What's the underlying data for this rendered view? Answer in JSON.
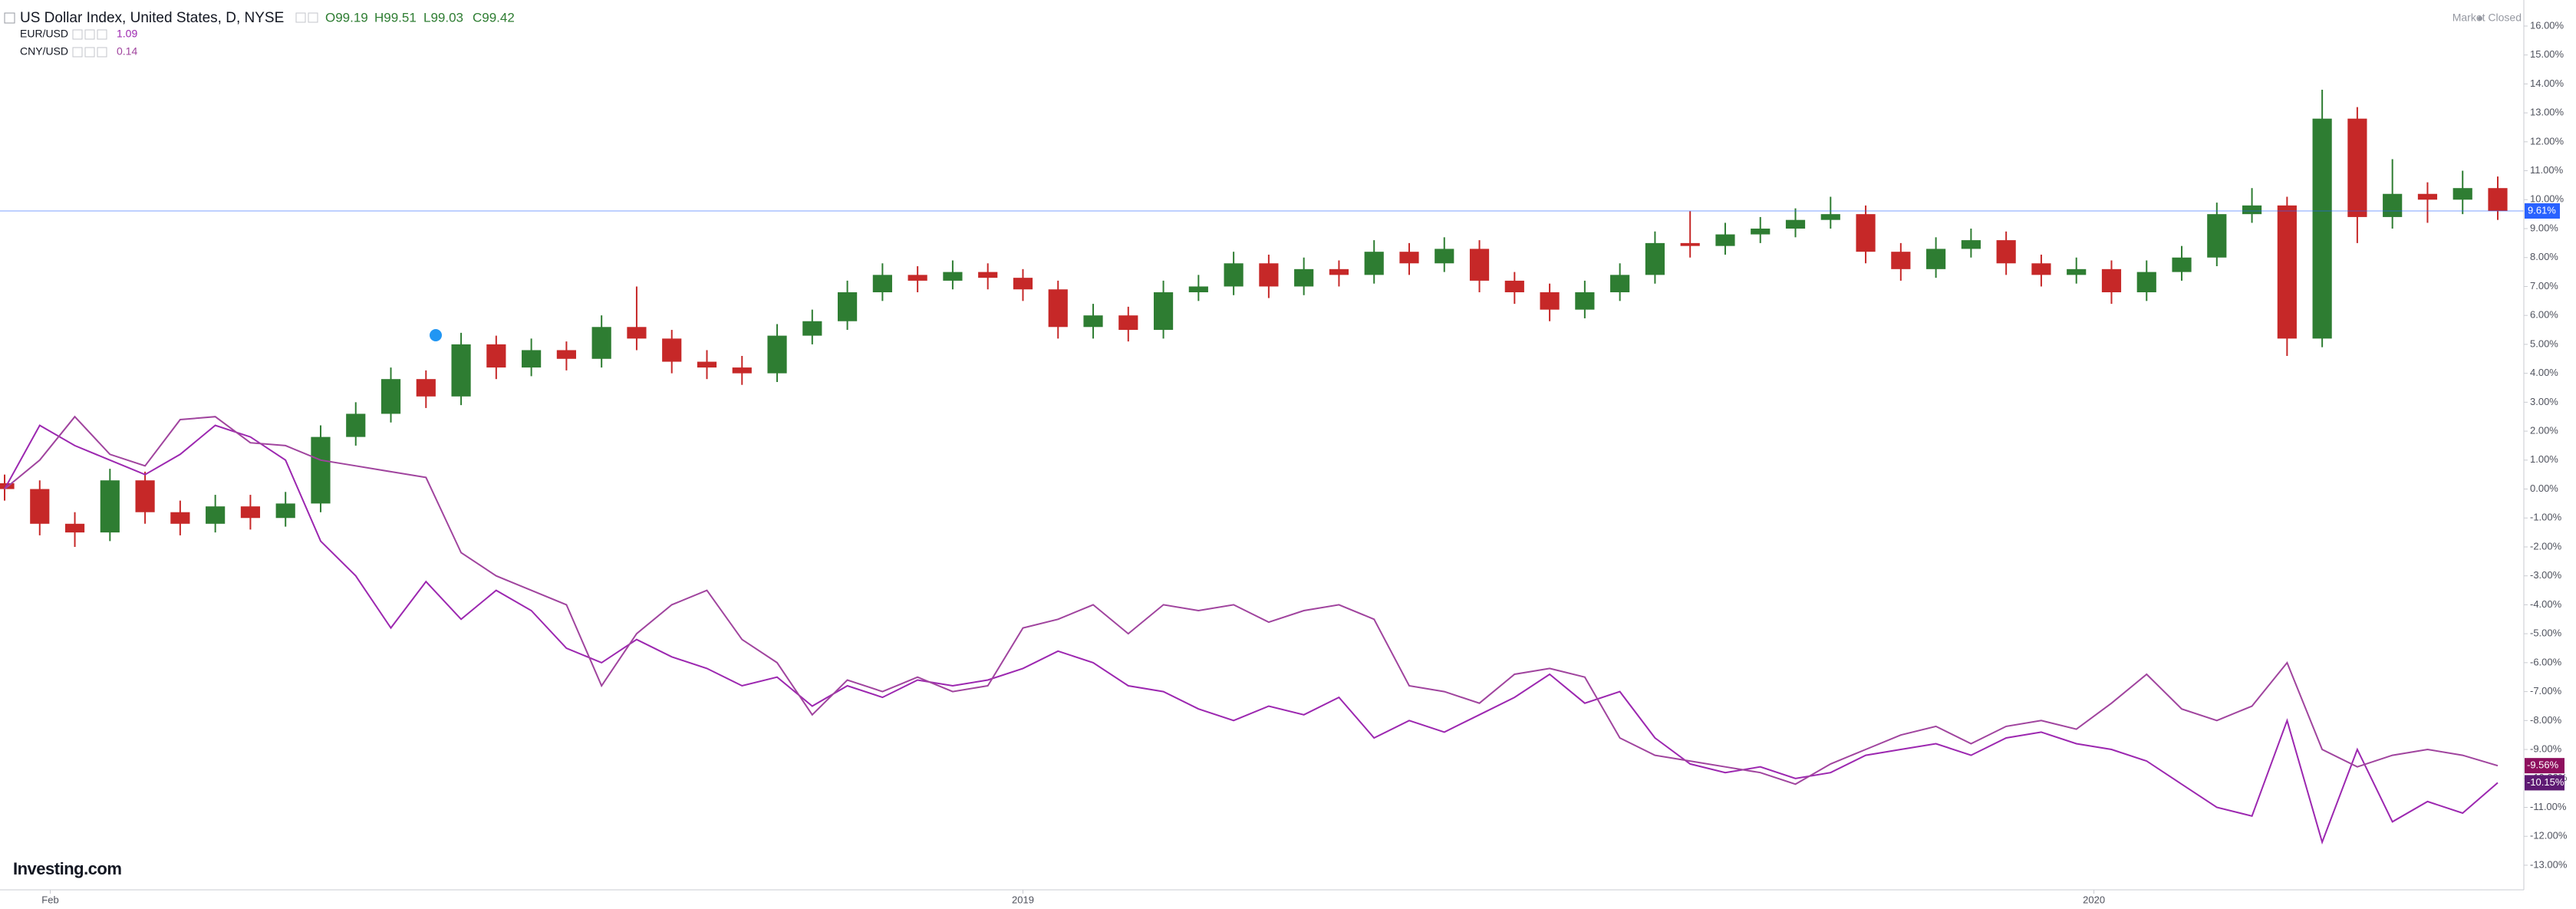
{
  "chart_data": {
    "type": "candlestick",
    "market_status": "Market Closed",
    "logo": "Investing.com",
    "ohlc_labels": [
      "O99.19",
      "H99.51",
      "L99.03",
      "C99.42"
    ],
    "xlim": [
      0,
      71
    ],
    "ylim": [
      -13.85,
      16.9
    ],
    "xticks": [
      {
        "value": 1.3,
        "label": "Feb"
      },
      {
        "value": 29,
        "label": "2019"
      },
      {
        "value": 59.5,
        "label": "2020"
      }
    ],
    "yticks": [
      {
        "value": 16,
        "label": "16.00%"
      },
      {
        "value": 15,
        "label": "15.00%"
      },
      {
        "value": 14,
        "label": "14.00%"
      },
      {
        "value": 13,
        "label": "13.00%"
      },
      {
        "value": 12,
        "label": "12.00%"
      },
      {
        "value": 11,
        "label": "11.00%"
      },
      {
        "value": 10,
        "label": "10.00%"
      },
      {
        "value": 9,
        "label": "9.00%"
      },
      {
        "value": 8,
        "label": "8.00%"
      },
      {
        "value": 7,
        "label": "7.00%"
      },
      {
        "value": 6,
        "label": "6.00%"
      },
      {
        "value": 5,
        "label": "5.00%"
      },
      {
        "value": 4,
        "label": "4.00%"
      },
      {
        "value": 3,
        "label": "3.00%"
      },
      {
        "value": 2,
        "label": "2.00%"
      },
      {
        "value": 1,
        "label": "1.00%"
      },
      {
        "value": 0,
        "label": "0.00%"
      },
      {
        "value": -1,
        "label": "-1.00%"
      },
      {
        "value": -2,
        "label": "-2.00%"
      },
      {
        "value": -3,
        "label": "-3.00%"
      },
      {
        "value": -4,
        "label": "-4.00%"
      },
      {
        "value": -5,
        "label": "-5.00%"
      },
      {
        "value": -6,
        "label": "-6.00%"
      },
      {
        "value": -7,
        "label": "-7.00%"
      },
      {
        "value": -8,
        "label": "-8.00%"
      },
      {
        "value": -9,
        "label": "-9.00%"
      },
      {
        "value": -10,
        "label": "-10.00%"
      },
      {
        "value": -11,
        "label": "-11.00%"
      },
      {
        "value": -12,
        "label": "-12.00%"
      },
      {
        "value": -13,
        "label": "-13.00%"
      }
    ],
    "series": [
      {
        "name": "US Dollar Index, United States, D, NYSE",
        "type": "candlestick",
        "up_color": "#2e7d32",
        "down_color": "#c62828",
        "last_color": "#2962ff",
        "last_value_label": "9.61%",
        "open": [
          0.2,
          0,
          -1.2,
          -1.5,
          0.3,
          -0.8,
          -1.2,
          -0.6,
          -1.0,
          -0.5,
          1.8,
          2.6,
          3.8,
          3.2,
          5.0,
          4.2,
          4.8,
          4.5,
          5.6,
          5.2,
          4.4,
          4.2,
          4.0,
          5.3,
          5.8,
          6.8,
          7.4,
          7.2,
          7.5,
          7.3,
          6.9,
          5.6,
          6.0,
          5.5,
          6.8,
          7.0,
          7.8,
          7.0,
          7.6,
          7.4,
          8.2,
          7.8,
          8.3,
          7.2,
          6.8,
          6.2,
          6.8,
          7.4,
          8.5,
          8.4,
          8.8,
          9.0,
          9.3,
          9.5,
          8.2,
          7.6,
          8.3,
          8.6,
          7.8,
          7.4,
          7.6,
          6.8,
          7.5,
          8.0,
          9.5,
          9.8,
          5.2,
          12.8,
          9.4,
          10.2,
          10.0,
          10.4
        ],
        "high": [
          0.5,
          0.3,
          -0.8,
          0.7,
          0.6,
          -0.4,
          -0.2,
          -0.2,
          -0.1,
          2.2,
          3.0,
          4.2,
          4.1,
          5.4,
          5.3,
          5.2,
          5.1,
          6.0,
          7.0,
          5.5,
          4.8,
          4.6,
          5.7,
          6.2,
          7.2,
          7.8,
          7.7,
          7.9,
          7.8,
          7.6,
          7.2,
          6.4,
          6.3,
          7.2,
          7.4,
          8.2,
          8.1,
          8.0,
          7.9,
          8.6,
          8.5,
          8.7,
          8.6,
          7.5,
          7.1,
          7.2,
          7.8,
          8.9,
          9.6,
          9.2,
          9.4,
          9.7,
          10.1,
          9.8,
          8.5,
          8.7,
          9.0,
          8.9,
          8.1,
          8.0,
          7.9,
          7.9,
          8.4,
          9.9,
          10.4,
          10.1,
          13.8,
          13.2,
          11.4,
          10.6,
          11.0,
          10.8
        ],
        "low": [
          -0.4,
          -1.6,
          -2.0,
          -1.8,
          -1.2,
          -1.6,
          -1.5,
          -1.4,
          -1.3,
          -0.8,
          1.5,
          2.3,
          2.8,
          2.9,
          3.8,
          3.9,
          4.1,
          4.2,
          4.8,
          4.0,
          3.8,
          3.6,
          3.7,
          5.0,
          5.5,
          6.5,
          6.8,
          6.9,
          6.9,
          6.5,
          5.2,
          5.2,
          5.1,
          5.2,
          6.5,
          6.7,
          6.6,
          6.7,
          7.0,
          7.1,
          7.4,
          7.5,
          6.8,
          6.4,
          5.8,
          5.9,
          6.5,
          7.1,
          8.0,
          8.1,
          8.5,
          8.7,
          9.0,
          7.8,
          7.2,
          7.3,
          8.0,
          7.4,
          7.0,
          7.1,
          6.4,
          6.5,
          7.2,
          7.7,
          9.2,
          4.6,
          4.9,
          8.5,
          9.0,
          9.2,
          9.5,
          9.3
        ],
        "close": [
          0,
          -1.2,
          -1.5,
          0.3,
          -0.8,
          -1.2,
          -0.6,
          -1.0,
          -0.5,
          1.8,
          2.6,
          3.8,
          3.2,
          5.0,
          4.2,
          4.8,
          4.5,
          5.6,
          5.2,
          4.4,
          4.2,
          4.0,
          5.3,
          5.8,
          6.8,
          7.4,
          7.2,
          7.5,
          7.3,
          6.9,
          5.6,
          6.0,
          5.5,
          6.8,
          7.0,
          7.8,
          7.0,
          7.6,
          7.4,
          8.2,
          7.8,
          8.3,
          7.2,
          6.8,
          6.2,
          6.8,
          7.4,
          8.5,
          8.4,
          8.8,
          9.0,
          9.3,
          9.5,
          8.2,
          7.6,
          8.3,
          8.6,
          7.8,
          7.4,
          7.6,
          6.8,
          7.5,
          8.0,
          9.5,
          9.8,
          5.2,
          12.8,
          9.4,
          10.2,
          10.0,
          10.4,
          9.61
        ]
      },
      {
        "name": "EUR/USD",
        "type": "line",
        "color": "#9c27b0",
        "legend_value": "1.09",
        "label_color": "#5e1a73",
        "last_value_label": "-10.15%",
        "values": [
          0,
          2.2,
          1.5,
          1.0,
          0.5,
          1.2,
          2.2,
          1.8,
          1.0,
          -1.8,
          -3.0,
          -4.8,
          -3.2,
          -4.5,
          -3.5,
          -4.2,
          -5.5,
          -6.0,
          -5.2,
          -5.8,
          -6.2,
          -6.8,
          -6.5,
          -7.5,
          -6.8,
          -7.2,
          -6.6,
          -6.8,
          -6.6,
          -6.2,
          -5.6,
          -6.0,
          -6.8,
          -7.0,
          -7.6,
          -8.0,
          -7.5,
          -7.8,
          -7.2,
          -8.6,
          -8.0,
          -8.4,
          -7.8,
          -7.2,
          -6.4,
          -7.4,
          -7.0,
          -8.6,
          -9.5,
          -9.8,
          -9.6,
          -10.0,
          -9.8,
          -9.2,
          -9.0,
          -8.8,
          -9.2,
          -8.6,
          -8.4,
          -8.8,
          -9.0,
          -9.4,
          -10.2,
          -11.0,
          -11.3,
          -8.0,
          -12.2,
          -9.0,
          -11.5,
          -10.8,
          -11.2,
          -10.15
        ]
      },
      {
        "name": "CNY/USD",
        "type": "line",
        "color": "#a0449e",
        "legend_value": "0.14",
        "label_color": "#8e0f5e",
        "last_value_label": "-9.56%",
        "values": [
          0,
          1.0,
          2.5,
          1.2,
          0.8,
          2.4,
          2.5,
          1.6,
          1.5,
          1.0,
          0.8,
          0.6,
          0.4,
          -2.2,
          -3.0,
          -3.5,
          -4.0,
          -6.8,
          -5.0,
          -4.0,
          -3.5,
          -5.2,
          -6.0,
          -7.8,
          -6.6,
          -7.0,
          -6.5,
          -7.0,
          -6.8,
          -4.8,
          -4.5,
          -4.0,
          -5.0,
          -4.0,
          -4.2,
          -4.0,
          -4.6,
          -4.2,
          -4.0,
          -4.5,
          -6.8,
          -7.0,
          -7.4,
          -6.4,
          -6.2,
          -6.5,
          -8.6,
          -9.2,
          -9.4,
          -9.6,
          -9.8,
          -10.2,
          -9.5,
          -9.0,
          -8.5,
          -8.2,
          -8.8,
          -8.2,
          -8.0,
          -8.3,
          -7.4,
          -6.4,
          -7.6,
          -8.0,
          -7.5,
          -6.0,
          -9.0,
          -9.6,
          -9.2,
          -9.0,
          -9.2,
          -9.56
        ]
      }
    ]
  }
}
